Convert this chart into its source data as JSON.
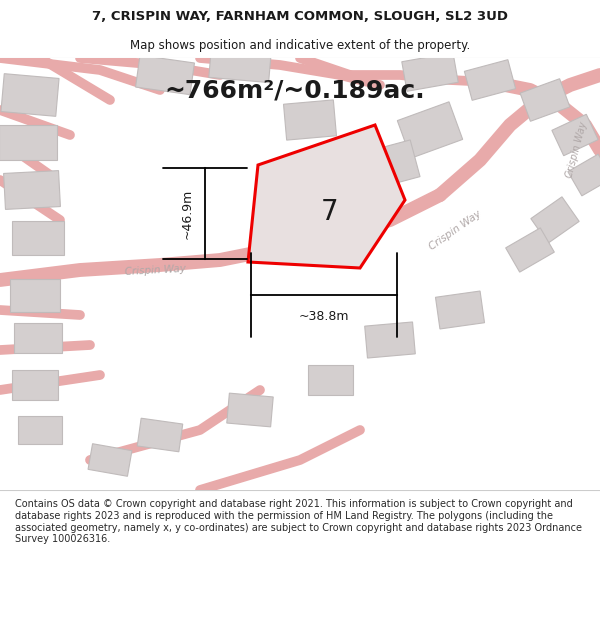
{
  "title_line1": "7, CRISPIN WAY, FARNHAM COMMON, SLOUGH, SL2 3UD",
  "title_line2": "Map shows position and indicative extent of the property.",
  "area_label": "~766m²/~0.189ac.",
  "label_7": "7",
  "dim_height": "~46.9m",
  "dim_width": "~38.8m",
  "road_label_bottom": "Crispin Way",
  "road_label_diag": "Crispin Way",
  "road_label_right": "Crispin Way",
  "footer": "Contains OS data © Crown copyright and database right 2021. This information is subject to Crown copyright and database rights 2023 and is reproduced with the permission of HM Land Registry. The polygons (including the associated geometry, namely x, y co-ordinates) are subject to Crown copyright and database rights 2023 Ordnance Survey 100026316.",
  "map_bg": "#f7f2f2",
  "road_color": "#e8aaaa",
  "road_fill": "#eddede",
  "building_face": "#d4cfcf",
  "building_edge": "#c0bbbb",
  "plot_face": "#e8e0e0",
  "plot_edge": "#ee0000",
  "text_dark": "#1a1a1a",
  "text_road": "#b0a8a8",
  "white": "#ffffff",
  "separator": "#cccccc"
}
